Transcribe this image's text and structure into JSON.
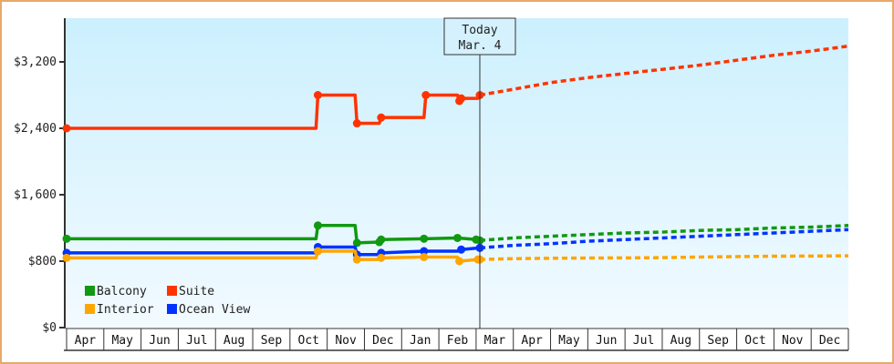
{
  "chart_data": {
    "type": "line",
    "title": "",
    "xlabel": "",
    "ylabel": "",
    "ylim": [
      0,
      4100
    ],
    "y_ticks": [
      "$0",
      "$800",
      "$1,600",
      "$2,400",
      "$3,200"
    ],
    "y_tick_values": [
      0,
      800,
      1600,
      2400,
      3200
    ],
    "x_months": [
      "Apr",
      "May",
      "Jun",
      "Jul",
      "Aug",
      "Sep",
      "Oct",
      "Nov",
      "Dec",
      "Jan",
      "Feb",
      "Mar",
      "Apr",
      "May",
      "Jun",
      "Jul",
      "Aug",
      "Sep",
      "Oct",
      "Nov",
      "Dec"
    ],
    "today_marker": {
      "line1": "Today",
      "line2": "Mar. 4",
      "x_index": 11.1
    },
    "legend": [
      {
        "name": "Balcony",
        "color": "#119911"
      },
      {
        "name": "Suite",
        "color": "#ff3300"
      },
      {
        "name": "Interior",
        "color": "#ffa500"
      },
      {
        "name": "Ocean View",
        "color": "#0033ff"
      }
    ],
    "series": [
      {
        "name": "Suite",
        "color": "#ff3300",
        "historical": [
          [
            0,
            2400
          ],
          [
            6.7,
            2400
          ],
          [
            6.75,
            2800
          ],
          [
            7.75,
            2800
          ],
          [
            7.8,
            2460
          ],
          [
            8.4,
            2460
          ],
          [
            8.45,
            2530
          ],
          [
            9.6,
            2530
          ],
          [
            9.65,
            2800
          ],
          [
            10.5,
            2800
          ],
          [
            10.55,
            2730
          ],
          [
            10.6,
            2760
          ],
          [
            11.05,
            2760
          ],
          [
            11.1,
            2800
          ]
        ],
        "forecast": [
          [
            11.1,
            2800
          ],
          [
            12,
            2870
          ],
          [
            13,
            2950
          ],
          [
            14,
            3010
          ],
          [
            15,
            3060
          ],
          [
            16,
            3110
          ],
          [
            17,
            3160
          ],
          [
            18,
            3220
          ],
          [
            19,
            3280
          ],
          [
            20,
            3330
          ],
          [
            21,
            3390
          ]
        ]
      },
      {
        "name": "Balcony",
        "color": "#119911",
        "historical": [
          [
            0,
            1070
          ],
          [
            6.7,
            1070
          ],
          [
            6.75,
            1230
          ],
          [
            7.75,
            1230
          ],
          [
            7.8,
            1020
          ],
          [
            8.4,
            1030
          ],
          [
            8.45,
            1060
          ],
          [
            9.6,
            1070
          ],
          [
            10.5,
            1080
          ],
          [
            11.0,
            1060
          ],
          [
            11.1,
            1050
          ]
        ],
        "forecast": [
          [
            11.1,
            1050
          ],
          [
            12,
            1080
          ],
          [
            13,
            1100
          ],
          [
            14,
            1120
          ],
          [
            15,
            1140
          ],
          [
            16,
            1150
          ],
          [
            17,
            1170
          ],
          [
            18,
            1180
          ],
          [
            19,
            1200
          ],
          [
            20,
            1210
          ],
          [
            21,
            1230
          ]
        ]
      },
      {
        "name": "Ocean View",
        "color": "#0033ff",
        "historical": [
          [
            0,
            900
          ],
          [
            6.7,
            900
          ],
          [
            6.75,
            970
          ],
          [
            7.75,
            970
          ],
          [
            7.8,
            880
          ],
          [
            8.4,
            880
          ],
          [
            8.45,
            900
          ],
          [
            9.6,
            920
          ],
          [
            10.5,
            920
          ],
          [
            10.6,
            940
          ],
          [
            11.1,
            960
          ]
        ],
        "forecast": [
          [
            11.1,
            960
          ],
          [
            12,
            990
          ],
          [
            13,
            1010
          ],
          [
            14,
            1040
          ],
          [
            15,
            1060
          ],
          [
            16,
            1080
          ],
          [
            17,
            1100
          ],
          [
            18,
            1120
          ],
          [
            19,
            1140
          ],
          [
            20,
            1160
          ],
          [
            21,
            1180
          ]
        ]
      },
      {
        "name": "Interior",
        "color": "#ffa500",
        "historical": [
          [
            0,
            840
          ],
          [
            6.7,
            840
          ],
          [
            6.75,
            920
          ],
          [
            7.75,
            920
          ],
          [
            7.8,
            820
          ],
          [
            8.4,
            820
          ],
          [
            8.45,
            840
          ],
          [
            9.6,
            850
          ],
          [
            10.5,
            850
          ],
          [
            10.55,
            800
          ],
          [
            11.05,
            820
          ],
          [
            11.1,
            820
          ]
        ],
        "forecast": [
          [
            11.1,
            820
          ],
          [
            12,
            830
          ],
          [
            13,
            835
          ],
          [
            14,
            838
          ],
          [
            15,
            840
          ],
          [
            16,
            842
          ],
          [
            17,
            850
          ],
          [
            18,
            855
          ],
          [
            19,
            860
          ],
          [
            20,
            862
          ],
          [
            21,
            865
          ]
        ]
      }
    ]
  }
}
